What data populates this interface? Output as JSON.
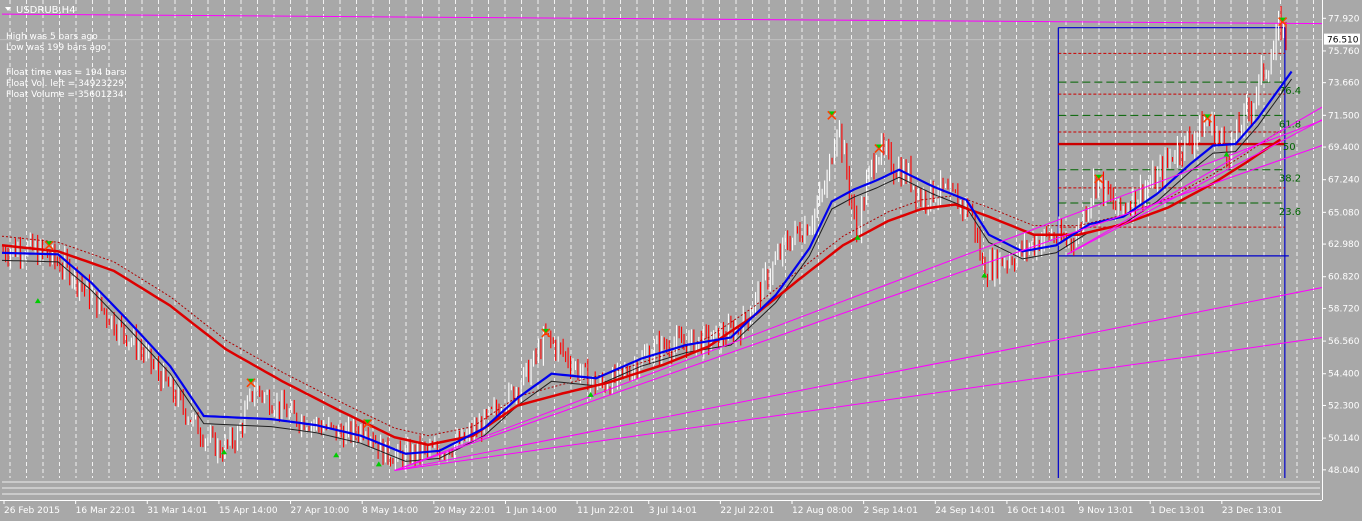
{
  "window": {
    "title": "USDRUB,H4",
    "title_menu_icon": "triangle-down-icon"
  },
  "info_panel": {
    "lines": [
      "High was    5 bars ago",
      "Low was    199 bars ago",
      "Float time was  =    194 bars",
      "Float Vol. left    =  34923229",
      "Float Volume      =  35601234"
    ]
  },
  "colors": {
    "background": "#a8a8a8",
    "candle_up": "#ffffff",
    "candle_down": "#ff0000",
    "ma_fast": "#0000ee",
    "ma_slow": "#dd0000",
    "trendline": "#ff00ff",
    "float_box": "#0000cc",
    "fib_green": "#006400",
    "fib_red": "#cc0000",
    "fractal_high": "#ff4000",
    "fractal_low": "#00cc00"
  },
  "chart_data": {
    "type": "candlestick",
    "symbol": "USDRUB",
    "timeframe": "H4",
    "current_price_label": "76.510",
    "ylim": [
      47.5,
      78.8
    ],
    "y_ticks": [
      "77.920",
      "75.760",
      "73.660",
      "71.500",
      "69.400",
      "67.240",
      "65.080",
      "62.980",
      "60.820",
      "58.720",
      "56.560",
      "54.400",
      "52.300",
      "50.140",
      "48.040"
    ],
    "x_ticks": [
      "26 Feb 2015",
      "16 Mar 22:01",
      "31 Mar 14:01",
      "15 Apr 14:00",
      "27 Apr 10:00",
      "8 May 14:00",
      "20 May 22:01",
      "1 Jun 14:00",
      "11 Jun 22:01",
      "3 Jul 14:01",
      "22 Jul 22:01",
      "12 Aug 08:00",
      "2 Sep 14:01",
      "24 Sep 14:01",
      "16 Oct 14:01",
      "9 Nov 13:01",
      "1 Dec 13:01",
      "23 Dec 13:01"
    ],
    "price_path": [
      [
        0,
        62.5
      ],
      [
        2,
        62.8
      ],
      [
        4,
        62.2
      ],
      [
        6,
        61.3
      ],
      [
        8,
        59.5
      ],
      [
        10,
        57.8
      ],
      [
        12,
        56.3
      ],
      [
        14,
        54.4
      ],
      [
        16,
        52.3
      ],
      [
        18,
        50.3
      ],
      [
        19.5,
        49.3
      ],
      [
        21,
        50.3
      ],
      [
        22.5,
        53.5
      ],
      [
        24,
        52.6
      ],
      [
        26,
        51.5
      ],
      [
        28,
        51.1
      ],
      [
        29.5,
        50.6
      ],
      [
        31,
        50.4
      ],
      [
        32.5,
        50.9
      ],
      [
        34,
        49.2
      ],
      [
        35.5,
        48.9
      ],
      [
        37,
        49.2
      ],
      [
        39,
        49.3
      ],
      [
        41,
        49.9
      ],
      [
        43,
        51.2
      ],
      [
        45,
        52.7
      ],
      [
        47,
        54.6
      ],
      [
        48.5,
        56.8
      ],
      [
        50,
        55.8
      ],
      [
        52,
        54.2
      ],
      [
        53,
        53.6
      ],
      [
        54.5,
        53.9
      ],
      [
        56,
        54.7
      ],
      [
        58,
        56.0
      ],
      [
        60,
        56.4
      ],
      [
        62,
        56.5
      ],
      [
        64,
        56.8
      ],
      [
        66,
        57.6
      ],
      [
        68,
        60.5
      ],
      [
        70,
        63.1
      ],
      [
        72,
        64.4
      ],
      [
        73.5,
        66.8
      ],
      [
        74.5,
        71.3
      ],
      [
        75.5,
        67.0
      ],
      [
        76.2,
        63.6
      ],
      [
        77,
        66.5
      ],
      [
        78,
        69.3
      ],
      [
        79.5,
        68.2
      ],
      [
        81,
        67.4
      ],
      [
        82,
        66.0
      ],
      [
        83.5,
        66.6
      ],
      [
        85,
        65.9
      ],
      [
        86.5,
        65.1
      ],
      [
        87.5,
        61.3
      ],
      [
        89,
        61.8
      ],
      [
        90.5,
        62.3
      ],
      [
        92,
        63.0
      ],
      [
        93.5,
        63.6
      ],
      [
        95,
        63.1
      ],
      [
        96,
        63.8
      ],
      [
        97.5,
        67.3
      ],
      [
        98.5,
        66.3
      ],
      [
        99.5,
        65.1
      ],
      [
        101,
        66.1
      ],
      [
        103,
        67.3
      ],
      [
        104.5,
        69.1
      ],
      [
        106,
        69.9
      ],
      [
        107.5,
        71.1
      ],
      [
        108.5,
        70.1
      ],
      [
        109.5,
        69.1
      ],
      [
        110.5,
        70.9
      ],
      [
        111.5,
        72.3
      ],
      [
        112.5,
        74.5
      ],
      [
        113.5,
        75.8
      ],
      [
        114,
        77.7
      ],
      [
        114.6,
        76.5
      ]
    ],
    "highs_marked": [
      [
        4.2,
        62.9
      ],
      [
        22.2,
        53.8
      ],
      [
        32.6,
        51.1
      ],
      [
        48.5,
        57.1
      ],
      [
        74.0,
        71.5
      ],
      [
        78.2,
        69.3
      ],
      [
        97.8,
        67.3
      ],
      [
        107.5,
        71.3
      ],
      [
        114.2,
        77.7
      ]
    ],
    "lows_marked": [
      [
        3.2,
        59.4
      ],
      [
        19.8,
        49.4
      ],
      [
        29.8,
        49.2
      ],
      [
        33.6,
        48.6
      ],
      [
        52.5,
        53.2
      ],
      [
        76.3,
        63.6
      ],
      [
        87.6,
        61.1
      ],
      [
        109.2,
        69.1
      ]
    ],
    "ma_fast": [
      [
        0,
        62.4
      ],
      [
        5,
        62.3
      ],
      [
        8,
        60.4
      ],
      [
        11,
        58.1
      ],
      [
        15,
        54.9
      ],
      [
        18,
        51.6
      ],
      [
        21,
        51.5
      ],
      [
        24,
        51.4
      ],
      [
        28,
        51.0
      ],
      [
        32,
        50.3
      ],
      [
        36,
        49.1
      ],
      [
        39,
        49.3
      ],
      [
        43,
        50.8
      ],
      [
        46,
        52.8
      ],
      [
        49,
        54.4
      ],
      [
        53,
        54.1
      ],
      [
        57,
        55.4
      ],
      [
        61,
        56.3
      ],
      [
        65,
        56.8
      ],
      [
        69,
        59.6
      ],
      [
        72,
        62.7
      ],
      [
        74,
        65.8
      ],
      [
        76,
        66.6
      ],
      [
        78,
        67.2
      ],
      [
        80,
        67.9
      ],
      [
        83,
        66.8
      ],
      [
        86,
        65.9
      ],
      [
        88,
        63.6
      ],
      [
        91,
        62.5
      ],
      [
        94,
        62.9
      ],
      [
        97,
        64.3
      ],
      [
        100,
        64.8
      ],
      [
        103,
        66.3
      ],
      [
        106,
        68.3
      ],
      [
        108,
        69.5
      ],
      [
        110,
        69.6
      ],
      [
        112,
        71.3
      ],
      [
        115,
        74.4
      ]
    ],
    "ma_slow": [
      [
        0,
        62.9
      ],
      [
        5,
        62.5
      ],
      [
        10,
        61.2
      ],
      [
        15,
        58.9
      ],
      [
        20,
        56.0
      ],
      [
        25,
        53.9
      ],
      [
        30,
        52.0
      ],
      [
        35,
        50.2
      ],
      [
        38,
        49.7
      ],
      [
        42,
        50.3
      ],
      [
        46,
        52.3
      ],
      [
        50,
        53.1
      ],
      [
        54,
        53.8
      ],
      [
        59,
        55.0
      ],
      [
        63,
        56.2
      ],
      [
        67,
        58.2
      ],
      [
        71,
        60.6
      ],
      [
        75,
        62.9
      ],
      [
        79,
        64.5
      ],
      [
        82,
        65.3
      ],
      [
        85,
        65.6
      ],
      [
        88,
        64.8
      ],
      [
        92,
        63.6
      ],
      [
        96,
        63.6
      ],
      [
        100,
        64.3
      ],
      [
        104,
        65.4
      ],
      [
        108,
        67.0
      ],
      [
        111,
        68.4
      ],
      [
        114,
        69.9
      ]
    ],
    "trendlines": [
      {
        "from": [
          35,
          48.0
        ],
        "to": [
          120,
          70.1
        ]
      },
      {
        "from": [
          35,
          48.0
        ],
        "to": [
          135,
          76.0
        ]
      },
      {
        "from": [
          35,
          48.0
        ],
        "to": [
          130,
          61.9
        ]
      },
      {
        "from": [
          35,
          48.0
        ],
        "to": [
          130,
          58.1
        ]
      },
      {
        "from": [
          0,
          78.2
        ],
        "to": [
          130,
          77.5
        ]
      },
      {
        "from": [
          95,
          62.3
        ],
        "to": [
          130,
          77.3
        ]
      },
      {
        "from": [
          95,
          62.3
        ],
        "to": [
          120,
          72.1
        ]
      }
    ],
    "fibonacci": {
      "box_x": [
        94.2,
        114.4
      ],
      "box_top": 77.3,
      "box_bottom": 47.5,
      "range_high_line": 77.3,
      "range_low_line": 62.2,
      "main_level": 69.6,
      "red_levels": [
        75.6,
        72.9,
        70.4,
        66.7,
        64.1
      ],
      "green_levels": [
        {
          "value": 73.7,
          "label": "76.4"
        },
        {
          "value": 71.5,
          "label": "61.8"
        },
        {
          "value": 67.9,
          "label": "38.2"
        },
        {
          "value": 65.7,
          "label": "23.6"
        }
      ],
      "center_label": {
        "value": 69.4,
        "label": "50"
      }
    }
  }
}
